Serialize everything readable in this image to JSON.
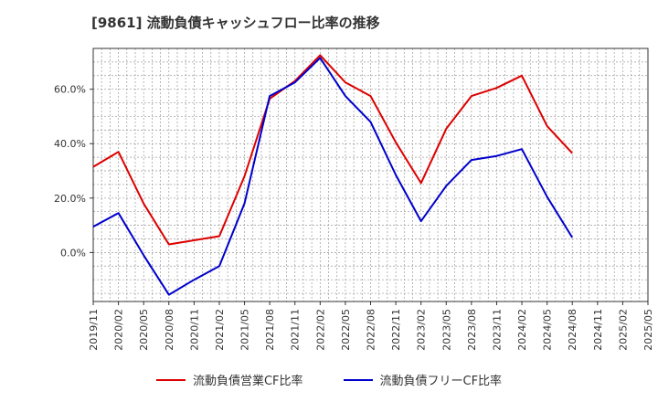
{
  "title": "[9861]  流動負債キャッシュフロー比率の推移",
  "colors": {
    "series1": "#dd0000",
    "series2": "#0000cc",
    "grid": "#999999",
    "axis": "#333333"
  },
  "chart_data": {
    "type": "line",
    "x": [
      "2019/11",
      "2020/02",
      "2020/05",
      "2020/08",
      "2020/11",
      "2021/02",
      "2021/05",
      "2021/08",
      "2021/11",
      "2022/02",
      "2022/05",
      "2022/08",
      "2022/11",
      "2023/02",
      "2023/05",
      "2023/08",
      "2023/11",
      "2024/02",
      "2024/05",
      "2024/08",
      "2024/11",
      "2025/02",
      "2025/05"
    ],
    "ytick_labels": [
      "0.0%",
      "20.0%",
      "40.0%",
      "60.0%"
    ],
    "ytick_values": [
      0,
      20,
      40,
      60
    ],
    "ylim": [
      -18,
      75
    ],
    "grid": true,
    "legend_position": "bottom",
    "series": [
      {
        "name": "流動負債営業CF比率",
        "color": "#dd0000",
        "values": [
          31.5,
          37,
          18,
          3,
          4.5,
          6,
          28,
          56.5,
          63,
          72.5,
          62.5,
          57.5,
          40.5,
          25.5,
          45.5,
          57.5,
          60.5,
          65,
          46.5,
          36.5,
          null,
          null,
          null
        ]
      },
      {
        "name": "流動負債フリーCF比率",
        "color": "#0000cc",
        "values": [
          9.5,
          14.5,
          -1,
          -15.5,
          -10,
          -5,
          18,
          57.5,
          62.5,
          71.5,
          57.5,
          48,
          28.5,
          11.5,
          24.5,
          34,
          35.5,
          38,
          20.5,
          5.5,
          null,
          null,
          null
        ]
      }
    ]
  }
}
